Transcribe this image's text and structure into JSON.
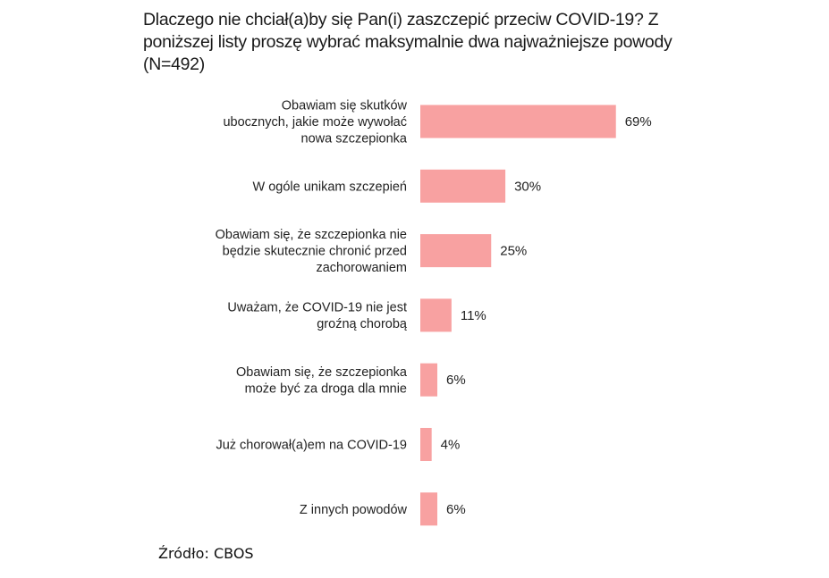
{
  "chart_data": {
    "type": "bar",
    "orientation": "horizontal",
    "title": "Dlaczego nie chciał(a)by się Pan(i) zaszczepić przeciw COVID-19? Z poniższej listy proszę wybrać maksymalnie dwa najważniejsze powody (N=492)",
    "categories": [
      [
        "Obawiam się skutków",
        "ubocznych, jakie może wywołać",
        "nowa szczepionka"
      ],
      [
        "W ogóle unikam szczepień"
      ],
      [
        "Obawiam się, że szczepionka nie",
        "będzie skutecznie chronić przed",
        "zachorowaniem"
      ],
      [
        "Uważam, że COVID-19 nie jest",
        "groźną chorobą"
      ],
      [
        "Obawiam się, że szczepionka",
        "może być za droga dla mnie"
      ],
      [
        "Już chorował(a)em na COVID-19"
      ],
      [
        "Z innych powodów"
      ]
    ],
    "values": [
      69,
      30,
      25,
      11,
      6,
      4,
      6
    ],
    "value_labels": [
      "69%",
      "30%",
      "25%",
      "11%",
      "6%",
      "4%",
      "6%"
    ],
    "unit": "%",
    "xlim": [
      0,
      100
    ],
    "grid": false,
    "bar_color": "#f8a1a1"
  },
  "source": "Źródło: CBOS"
}
